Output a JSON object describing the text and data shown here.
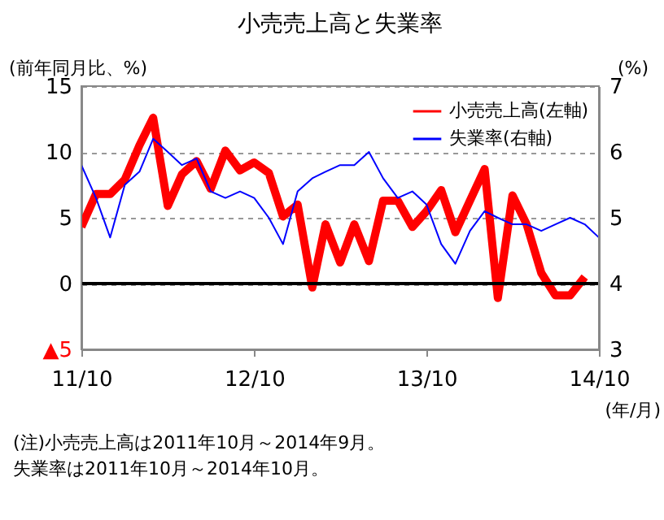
{
  "chart_data": {
    "type": "line",
    "title": "小売売上高と失業率",
    "x": [
      "2011-10",
      "2011-11",
      "2011-12",
      "2012-01",
      "2012-02",
      "2012-03",
      "2012-04",
      "2012-05",
      "2012-06",
      "2012-07",
      "2012-08",
      "2012-09",
      "2012-10",
      "2012-11",
      "2012-12",
      "2013-01",
      "2013-02",
      "2013-03",
      "2013-04",
      "2013-05",
      "2013-06",
      "2013-07",
      "2013-08",
      "2013-09",
      "2013-10",
      "2013-11",
      "2013-12",
      "2014-01",
      "2014-02",
      "2014-03",
      "2014-04",
      "2014-05",
      "2014-06",
      "2014-07",
      "2014-08",
      "2014-09",
      "2014-10"
    ],
    "series": [
      {
        "name": "小売売上高(左軸)",
        "color": "#ff0000",
        "axis": "y",
        "values": [
          4.3,
          6.8,
          6.8,
          7.9,
          10.5,
          12.6,
          5.9,
          8.3,
          9.3,
          7.2,
          10.1,
          8.6,
          9.2,
          8.4,
          5.1,
          6.0,
          -0.3,
          4.5,
          1.6,
          4.5,
          1.7,
          6.3,
          6.3,
          4.3,
          5.5,
          7.1,
          3.9,
          6.3,
          8.7,
          -1.1,
          6.7,
          4.5,
          0.8,
          -0.9,
          -0.9,
          0.5,
          null
        ]
      },
      {
        "name": "失業率(右軸)",
        "color": "#0000ff",
        "axis": "y2",
        "values": [
          5.8,
          5.3,
          4.7,
          5.5,
          5.7,
          6.2,
          6.0,
          5.8,
          5.9,
          5.4,
          5.3,
          5.4,
          5.3,
          5.0,
          4.6,
          5.4,
          5.6,
          5.7,
          5.8,
          5.8,
          6.0,
          5.6,
          5.3,
          5.4,
          5.2,
          4.6,
          4.3,
          4.8,
          5.1,
          5.0,
          4.9,
          4.9,
          4.8,
          4.9,
          5.0,
          4.9,
          4.7
        ]
      }
    ],
    "ylabel": "(前年同月比、%)",
    "y2label": "(%)",
    "xlabel": "(年/月)",
    "xlim": [
      "2011-10",
      "2014-10"
    ],
    "xticks": [
      {
        "value": "2011-10",
        "label": "11/10"
      },
      {
        "value": "2012-10",
        "label": "12/10"
      },
      {
        "value": "2013-10",
        "label": "13/10"
      },
      {
        "value": "2014-10",
        "label": "14/10"
      }
    ],
    "ylim": [
      -5,
      15
    ],
    "yticks": [
      {
        "value": -5,
        "label": "▲5"
      },
      0,
      5,
      10,
      15
    ],
    "y2lim": [
      3,
      7
    ],
    "y2ticks": [
      3,
      4,
      5,
      6,
      7
    ],
    "ref_lines": [
      {
        "axis": "y",
        "value": 0,
        "color": "#000000"
      }
    ],
    "grid": "y",
    "legend": "top right",
    "annotations": [
      "(注)小売売上高は2011年10月～2014年9月。",
      "　　 失業率は2011年10月～2014年10月。"
    ]
  }
}
